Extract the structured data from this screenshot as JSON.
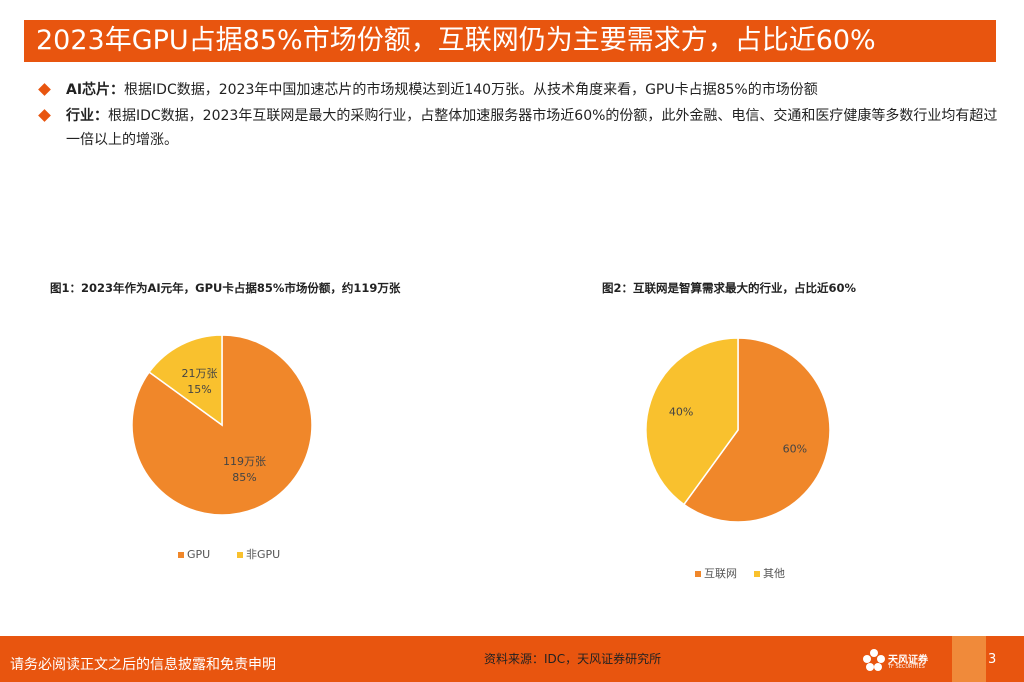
{
  "title": "2023年GPU占据85%市场份额，互联网仍为主要需求方，占比近60%",
  "bullets": [
    {
      "label": "AI芯片：",
      "text": "根据IDC数据，2023年中国加速芯片的市场规模达到近140万张。从技术角度来看，GPU卡占据85%的市场份额"
    },
    {
      "label": "行业：",
      "text": "根据IDC数据，2023年互联网是最大的采购行业，占整体加速服务器市场近60%的份额，此外金融、电信、交通和医疗健康等多数行业均有超过一倍以上的增涨。"
    }
  ],
  "chart_data": [
    {
      "type": "pie",
      "title": "图1：2023年作为AI元年，GPU卡占据85%市场份额，约119万张",
      "categories": [
        "GPU",
        "非GPU"
      ],
      "values": [
        85,
        15
      ],
      "labels": [
        [
          "119万张",
          "85%"
        ],
        [
          "21万张",
          "15%"
        ]
      ],
      "colors": [
        "#f0872a",
        "#f9c12e"
      ],
      "legend": "bottom"
    },
    {
      "type": "pie",
      "title": "图2：互联网是智算需求最大的行业，占比近60%",
      "categories": [
        "互联网",
        "其他"
      ],
      "values": [
        60,
        40
      ],
      "labels": [
        [
          "60%"
        ],
        [
          "40%"
        ]
      ],
      "colors": [
        "#f0872a",
        "#f9c12e"
      ],
      "legend": "bottom"
    }
  ],
  "footer": {
    "disclaimer": "请务必阅读正文之后的信息披露和免责申明",
    "source": "资料来源：IDC，天风证券研究所",
    "logo_text": "天风证券",
    "logo_sub": "TF SECURITIES",
    "page": "3"
  }
}
